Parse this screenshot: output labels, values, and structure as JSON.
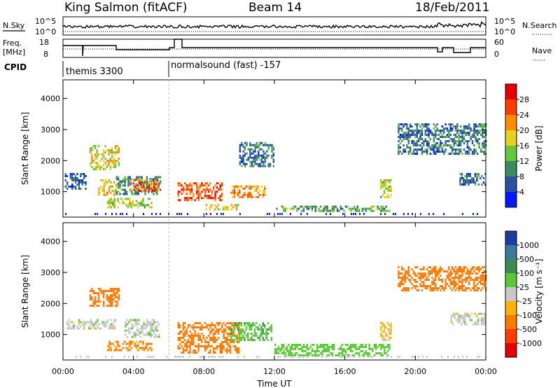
{
  "header": {
    "station": "King Salmon (fitACF)",
    "beam": "Beam 14",
    "date": "18/Feb/2011"
  },
  "top_panels": {
    "n_sky_label": "N.Sky",
    "n_search_label": "N.Search",
    "freq_label_1": "Freq.",
    "freq_label_2": "[MHz]",
    "nave_label": "Nave",
    "cpid_label": "CPID",
    "nsky_ticks_left": [
      "10^5",
      "10^0"
    ],
    "nsky_ticks_right": [
      "10^5",
      "10^0"
    ],
    "freq_ticks_left": [
      "18",
      "8"
    ],
    "freq_ticks_right": [
      "60",
      "0"
    ],
    "cpid_segments": [
      {
        "label": "themis 3300",
        "start_hour": 0
      },
      {
        "label": "normalsound (fast) -157",
        "start_hour": 6
      }
    ]
  },
  "axes": {
    "xlabel": "Time UT",
    "ylabel": "Slant Range [km]",
    "x_ticks": [
      "00:00",
      "04:00",
      "08:00",
      "12:00",
      "16:00",
      "20:00",
      "00:00"
    ],
    "y_ticks": [
      "1000",
      "2000",
      "3000",
      "4000"
    ]
  },
  "colorbars": {
    "power": {
      "label": "Power [dB]",
      "ticks": [
        "4",
        "8",
        "12",
        "16",
        "20",
        "24",
        "28"
      ],
      "colors": [
        "#0018ff",
        "#2a52a0",
        "#3c8a60",
        "#64c83a",
        "#e6d21e",
        "#ff8c00",
        "#ff3c00",
        "#e60000"
      ]
    },
    "velocity": {
      "label": "Velocity [m s⁻¹]",
      "ticks": [
        "1000",
        "500",
        "100",
        "25",
        "-25",
        "-100",
        "-500",
        "-1000"
      ],
      "colors": [
        "#1e3ca0",
        "#3c78a0",
        "#3c8c50",
        "#5ac832",
        "#c8c8c8",
        "#ffb400",
        "#ff7800",
        "#ff3c00",
        "#e60000"
      ]
    }
  },
  "chart_data": [
    {
      "type": "heatmap",
      "title": "Power",
      "xlabel": "Time UT",
      "ylabel": "Slant Range [km]",
      "xlim_hours": [
        0,
        24
      ],
      "ylim_km": [
        180,
        4600
      ],
      "colorbar_range_db": [
        0,
        32
      ],
      "regions": [
        {
          "t": [
            0.1,
            1.3
          ],
          "r": [
            1100,
            1600
          ],
          "level": 6
        },
        {
          "t": [
            1.5,
            3.2
          ],
          "r": [
            1700,
            2500
          ],
          "level": 18
        },
        {
          "t": [
            2.0,
            3.0
          ],
          "r": [
            900,
            1400
          ],
          "level": 20
        },
        {
          "t": [
            3.0,
            5.5
          ],
          "r": [
            900,
            1500
          ],
          "level": 10
        },
        {
          "t": [
            3.8,
            5.4
          ],
          "r": [
            1000,
            1400
          ],
          "level": 24
        },
        {
          "t": [
            2.5,
            5.0
          ],
          "r": [
            500,
            800
          ],
          "level": 16
        },
        {
          "t": [
            6.5,
            9.0
          ],
          "r": [
            700,
            1300
          ],
          "level": 26
        },
        {
          "t": [
            8.0,
            10.0
          ],
          "r": [
            400,
            600
          ],
          "level": 18
        },
        {
          "t": [
            9.5,
            11.5
          ],
          "r": [
            800,
            1200
          ],
          "level": 22
        },
        {
          "t": [
            10.0,
            12.0
          ],
          "r": [
            1800,
            2600
          ],
          "level": 8
        },
        {
          "t": [
            12.0,
            18.5
          ],
          "r": [
            350,
            550
          ],
          "level": 12
        },
        {
          "t": [
            18.0,
            18.6
          ],
          "r": [
            800,
            1400
          ],
          "level": 16
        },
        {
          "t": [
            19.0,
            24.0
          ],
          "r": [
            2200,
            3200
          ],
          "level": 8
        },
        {
          "t": [
            22.5,
            24.0
          ],
          "r": [
            1200,
            1600
          ],
          "level": 8
        }
      ]
    },
    {
      "type": "heatmap",
      "title": "Velocity",
      "xlabel": "Time UT",
      "ylabel": "Slant Range [km]",
      "xlim_hours": [
        0,
        24
      ],
      "ylim_km": [
        180,
        4600
      ],
      "colorbar_range_ms": [
        -1000,
        1000
      ],
      "regions": [
        {
          "t": [
            0.2,
            3.0
          ],
          "r": [
            1200,
            1500
          ],
          "vel": 0
        },
        {
          "t": [
            1.5,
            3.2
          ],
          "r": [
            1900,
            2500
          ],
          "vel": -300
        },
        {
          "t": [
            3.5,
            5.5
          ],
          "r": [
            900,
            1500
          ],
          "vel": 10
        },
        {
          "t": [
            2.5,
            5.0
          ],
          "r": [
            500,
            800
          ],
          "vel": -150
        },
        {
          "t": [
            6.5,
            10.0
          ],
          "r": [
            400,
            1400
          ],
          "vel": -300
        },
        {
          "t": [
            9.5,
            11.8
          ],
          "r": [
            800,
            1400
          ],
          "vel": 80
        },
        {
          "t": [
            12.0,
            18.5
          ],
          "r": [
            350,
            700
          ],
          "vel": 60
        },
        {
          "t": [
            18.0,
            18.6
          ],
          "r": [
            800,
            1400
          ],
          "vel": -40
        },
        {
          "t": [
            19.0,
            24.0
          ],
          "r": [
            2400,
            3200
          ],
          "vel": -200
        },
        {
          "t": [
            22.0,
            24.0
          ],
          "r": [
            1300,
            1700
          ],
          "vel": 0
        }
      ]
    }
  ]
}
